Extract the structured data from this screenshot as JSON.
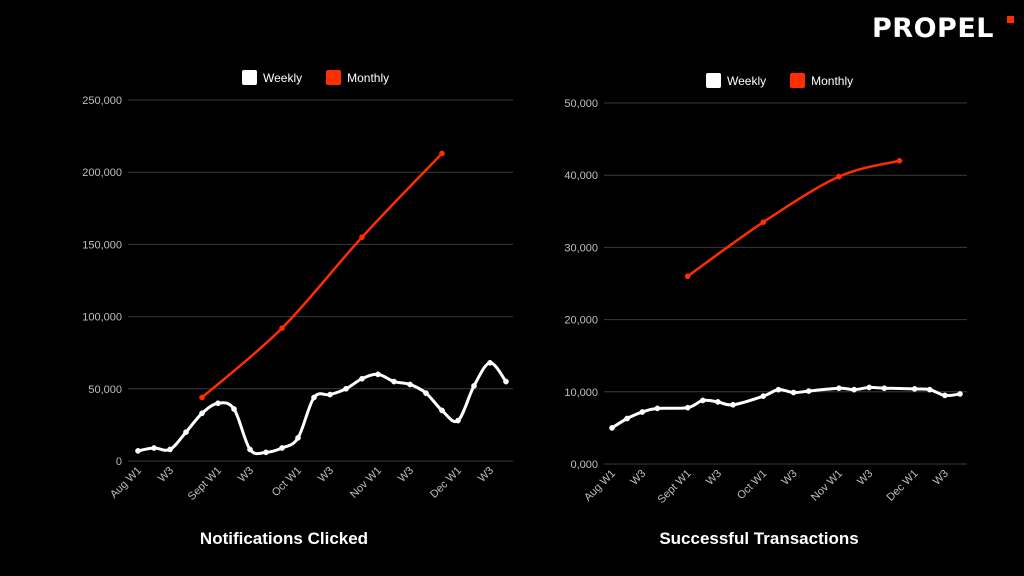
{
  "brand": {
    "logo": "PROPEL",
    "accent": "#ff2e00"
  },
  "colors": {
    "weekly": "#ffffff",
    "monthly": "#ff2e00",
    "grid": "#3a3a3a",
    "tick": "#bfbfbf"
  },
  "chart_data": [
    {
      "type": "line",
      "title": "Notifications Clicked",
      "legend": [
        "Weekly",
        "Monthly"
      ],
      "legend_position": "top-center",
      "grid": true,
      "ylim": [
        0,
        250000
      ],
      "yticks": [
        "0",
        "50,000",
        "100,000",
        "150,000",
        "200,000",
        "250,000"
      ],
      "ytick_values": [
        0,
        50000,
        100000,
        150000,
        200000,
        250000
      ],
      "xticks": [
        "Aug W1",
        "W3",
        "Sept W1",
        "W3",
        "Oct W1",
        "W3",
        "Nov W1",
        "W3",
        "Dec W1",
        "W3"
      ],
      "xtick_index": [
        0,
        2,
        5,
        7,
        10,
        12,
        15,
        17,
        20,
        22
      ],
      "x_count": 24,
      "series": [
        {
          "name": "Weekly",
          "color": "#ffffff",
          "x": [
            0,
            1,
            2,
            3,
            4,
            5,
            6,
            7,
            8,
            9,
            10,
            11,
            12,
            13,
            14,
            15,
            16,
            17,
            18,
            19,
            20,
            21,
            22,
            23
          ],
          "values": [
            7000,
            9000,
            8000,
            20000,
            33000,
            40000,
            36000,
            8000,
            6000,
            9000,
            16000,
            44000,
            46000,
            50000,
            57000,
            60000,
            55000,
            53000,
            47000,
            35000,
            28000,
            52000,
            68000,
            55000
          ]
        },
        {
          "name": "Monthly",
          "color": "#ff2e00",
          "x": [
            4,
            9,
            14,
            19
          ],
          "values": [
            44000,
            92000,
            155000,
            213000
          ]
        }
      ]
    },
    {
      "type": "line",
      "title": "Successful Transactions",
      "legend": [
        "Weekly",
        "Monthly"
      ],
      "legend_position": "top-center",
      "grid": true,
      "ylim": [
        0,
        50000
      ],
      "yticks": [
        "0,000",
        "10,000",
        "20,000",
        "30,000",
        "40,000",
        "50,000"
      ],
      "ytick_values": [
        0,
        10000,
        20000,
        30000,
        40000,
        50000
      ],
      "xticks": [
        "Aug W1",
        "W3",
        "Sept W1",
        "W3",
        "Oct W1",
        "W3",
        "Nov W1",
        "W3",
        "Dec W1",
        "W3"
      ],
      "xtick_index": [
        0,
        2,
        5,
        7,
        10,
        12,
        15,
        17,
        20,
        22
      ],
      "x_count": 24,
      "series": [
        {
          "name": "Weekly",
          "color": "#ffffff",
          "x": [
            0,
            1,
            2,
            3,
            5,
            6,
            7,
            8,
            10,
            11,
            12,
            13,
            15,
            16,
            17,
            18,
            20,
            21,
            22,
            23
          ],
          "values": [
            5000,
            6300,
            7200,
            7700,
            7800,
            8800,
            8600,
            8200,
            9400,
            10300,
            9900,
            10100,
            10500,
            10300,
            10600,
            10500,
            10400,
            10300,
            9500,
            9700
          ]
        },
        {
          "name": "Monthly",
          "color": "#ff2e00",
          "x": [
            5,
            10,
            15,
            19
          ],
          "values": [
            26000,
            33500,
            39800,
            42000
          ]
        }
      ]
    }
  ]
}
